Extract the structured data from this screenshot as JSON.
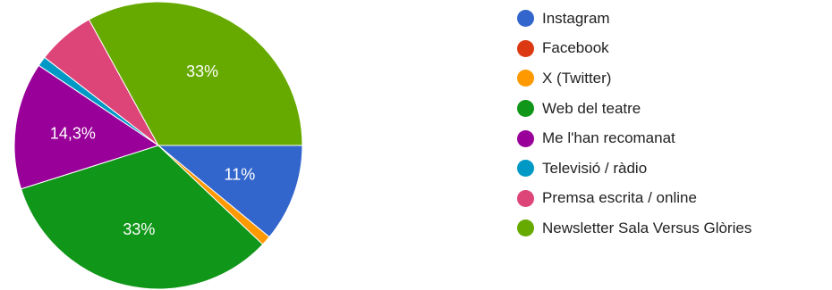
{
  "chart_data": {
    "type": "pie",
    "slices": [
      {
        "name": "Instagram",
        "value": 11,
        "color": "#3366cc",
        "label": "11%"
      },
      {
        "name": "Facebook",
        "value": 0,
        "color": "#dc3912",
        "label": ""
      },
      {
        "name": "X (Twitter)",
        "value": 1.1,
        "color": "#ff9900",
        "label": ""
      },
      {
        "name": "Web del teatre",
        "value": 33,
        "color": "#109618",
        "label": "33%"
      },
      {
        "name": "Me l'han recomanat",
        "value": 14.3,
        "color": "#990099",
        "label": "14,3%"
      },
      {
        "name": "Televisió / ràdio",
        "value": 1.1,
        "color": "#0099c6",
        "label": ""
      },
      {
        "name": "Premsa escrita / online",
        "value": 6.5,
        "color": "#dd4477",
        "label": ""
      },
      {
        "name": "Newsletter Sala Versus Glòries",
        "value": 33,
        "color": "#66aa00",
        "label": "33%"
      }
    ]
  }
}
